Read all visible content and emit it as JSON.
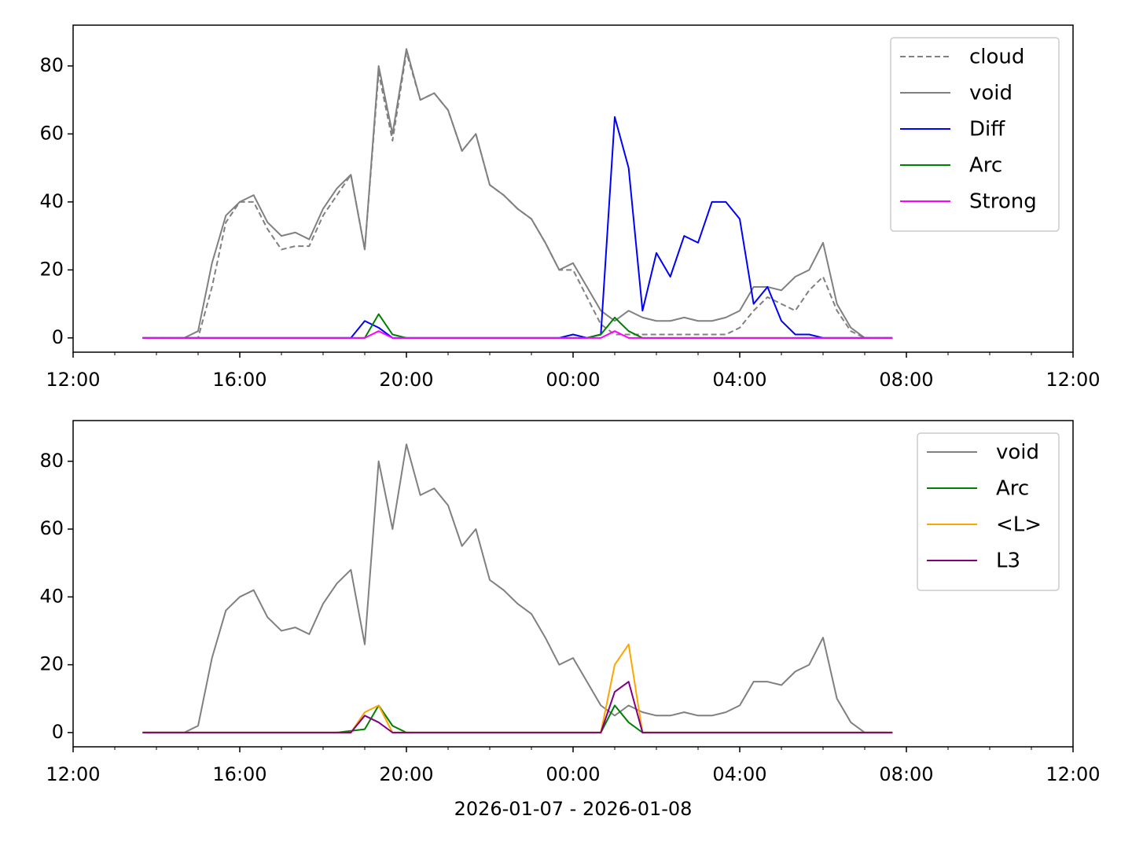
{
  "chart_data": [
    {
      "type": "line",
      "x": [
        "2026-01-07T13:40",
        "2026-01-07T14:00",
        "2026-01-07T14:20",
        "2026-01-07T14:40",
        "2026-01-07T15:00",
        "2026-01-07T15:20",
        "2026-01-07T15:40",
        "2026-01-07T16:00",
        "2026-01-07T16:20",
        "2026-01-07T16:40",
        "2026-01-07T17:00",
        "2026-01-07T17:20",
        "2026-01-07T17:40",
        "2026-01-07T18:00",
        "2026-01-07T18:20",
        "2026-01-07T18:40",
        "2026-01-07T19:00",
        "2026-01-07T19:20",
        "2026-01-07T19:40",
        "2026-01-07T20:00",
        "2026-01-07T20:20",
        "2026-01-07T20:40",
        "2026-01-07T21:00",
        "2026-01-07T21:20",
        "2026-01-07T21:40",
        "2026-01-07T22:00",
        "2026-01-07T22:20",
        "2026-01-07T22:40",
        "2026-01-07T23:00",
        "2026-01-07T23:20",
        "2026-01-07T23:40",
        "2026-01-08T00:00",
        "2026-01-08T00:20",
        "2026-01-08T00:40",
        "2026-01-08T01:00",
        "2026-01-08T01:20",
        "2026-01-08T01:40",
        "2026-01-08T02:00",
        "2026-01-08T02:20",
        "2026-01-08T02:40",
        "2026-01-08T03:00",
        "2026-01-08T03:20",
        "2026-01-08T03:40",
        "2026-01-08T04:00",
        "2026-01-08T04:20",
        "2026-01-08T04:40",
        "2026-01-08T05:00",
        "2026-01-08T05:20",
        "2026-01-08T05:40",
        "2026-01-08T06:00",
        "2026-01-08T06:20",
        "2026-01-08T06:40",
        "2026-01-08T07:00",
        "2026-01-08T07:20",
        "2026-01-08T07:40"
      ],
      "series": [
        {
          "name": "cloud",
          "color": "#808080",
          "linestyle": "dashed",
          "values": [
            0,
            0,
            0,
            0,
            0,
            15,
            34,
            40,
            40,
            32,
            26,
            27,
            27,
            36,
            42,
            48,
            26,
            78,
            58,
            84,
            70,
            72,
            67,
            55,
            60,
            45,
            42,
            38,
            35,
            28,
            20,
            20,
            12,
            4,
            1,
            1,
            1,
            1,
            1,
            1,
            1,
            1,
            1,
            3,
            8,
            12,
            10,
            8,
            14,
            18,
            8,
            2,
            0,
            0,
            0
          ]
        },
        {
          "name": "void",
          "color": "#808080",
          "values": [
            0,
            0,
            0,
            0,
            2,
            22,
            36,
            40,
            42,
            34,
            30,
            31,
            29,
            38,
            44,
            48,
            26,
            80,
            60,
            85,
            70,
            72,
            67,
            55,
            60,
            45,
            42,
            38,
            35,
            28,
            20,
            22,
            15,
            8,
            5,
            8,
            6,
            5,
            5,
            6,
            5,
            5,
            6,
            8,
            15,
            15,
            14,
            18,
            20,
            28,
            10,
            3,
            0,
            0,
            0
          ]
        },
        {
          "name": "Diff",
          "color": "#0000ff",
          "values": [
            0,
            0,
            0,
            0,
            0,
            0,
            0,
            0,
            0,
            0,
            0,
            0,
            0,
            0,
            0,
            0,
            5,
            3,
            0,
            0,
            0,
            0,
            0,
            0,
            0,
            0,
            0,
            0,
            0,
            0,
            0,
            1,
            0,
            1,
            65,
            50,
            8,
            25,
            18,
            30,
            28,
            40,
            40,
            35,
            10,
            15,
            5,
            1,
            1,
            0,
            0,
            0,
            0,
            0,
            0
          ]
        },
        {
          "name": "Arc",
          "color": "#008000",
          "values": [
            0,
            0,
            0,
            0,
            0,
            0,
            0,
            0,
            0,
            0,
            0,
            0,
            0,
            0,
            0,
            0,
            0,
            7,
            1,
            0,
            0,
            0,
            0,
            0,
            0,
            0,
            0,
            0,
            0,
            0,
            0,
            0,
            0,
            1,
            6,
            2,
            0,
            0,
            0,
            0,
            0,
            0,
            0,
            0,
            0,
            0,
            0,
            0,
            0,
            0,
            0,
            0,
            0,
            0,
            0
          ]
        },
        {
          "name": "Strong",
          "color": "#ff00ff",
          "values": [
            0,
            0,
            0,
            0,
            0,
            0,
            0,
            0,
            0,
            0,
            0,
            0,
            0,
            0,
            0,
            0,
            0,
            2,
            0,
            0,
            0,
            0,
            0,
            0,
            0,
            0,
            0,
            0,
            0,
            0,
            0,
            0,
            0,
            0,
            2,
            0,
            0,
            0,
            0,
            0,
            0,
            0,
            0,
            0,
            0,
            0,
            0,
            0,
            0,
            0,
            0,
            0,
            0,
            0,
            0
          ]
        }
      ],
      "xlim": [
        "2026-01-07T12:00",
        "2026-01-08T12:00"
      ],
      "xticks": [
        {
          "value": "2026-01-07T12:00",
          "label": "12:00"
        },
        {
          "value": "2026-01-07T16:00",
          "label": "16:00"
        },
        {
          "value": "2026-01-07T20:00",
          "label": "20:00"
        },
        {
          "value": "2026-01-08T00:00",
          "label": "00:00"
        },
        {
          "value": "2026-01-08T04:00",
          "label": "04:00"
        },
        {
          "value": "2026-01-08T08:00",
          "label": "08:00"
        },
        {
          "value": "2026-01-08T12:00",
          "label": "12:00"
        }
      ],
      "ylim": [
        -4.2,
        92
      ],
      "yticks": [
        0,
        20,
        40,
        60,
        80
      ],
      "legend": "upper right"
    },
    {
      "type": "line",
      "x": [
        "2026-01-07T13:40",
        "2026-01-07T14:00",
        "2026-01-07T14:20",
        "2026-01-07T14:40",
        "2026-01-07T15:00",
        "2026-01-07T15:20",
        "2026-01-07T15:40",
        "2026-01-07T16:00",
        "2026-01-07T16:20",
        "2026-01-07T16:40",
        "2026-01-07T17:00",
        "2026-01-07T17:20",
        "2026-01-07T17:40",
        "2026-01-07T18:00",
        "2026-01-07T18:20",
        "2026-01-07T18:40",
        "2026-01-07T19:00",
        "2026-01-07T19:20",
        "2026-01-07T19:40",
        "2026-01-07T20:00",
        "2026-01-07T20:20",
        "2026-01-07T20:40",
        "2026-01-07T21:00",
        "2026-01-07T21:20",
        "2026-01-07T21:40",
        "2026-01-07T22:00",
        "2026-01-07T22:20",
        "2026-01-07T22:40",
        "2026-01-07T23:00",
        "2026-01-07T23:20",
        "2026-01-07T23:40",
        "2026-01-08T00:00",
        "2026-01-08T00:20",
        "2026-01-08T00:40",
        "2026-01-08T01:00",
        "2026-01-08T01:20",
        "2026-01-08T01:40",
        "2026-01-08T02:00",
        "2026-01-08T02:20",
        "2026-01-08T02:40",
        "2026-01-08T03:00",
        "2026-01-08T03:20",
        "2026-01-08T03:40",
        "2026-01-08T04:00",
        "2026-01-08T04:20",
        "2026-01-08T04:40",
        "2026-01-08T05:00",
        "2026-01-08T05:20",
        "2026-01-08T05:40",
        "2026-01-08T06:00",
        "2026-01-08T06:20",
        "2026-01-08T06:40",
        "2026-01-08T07:00",
        "2026-01-08T07:20",
        "2026-01-08T07:40"
      ],
      "series": [
        {
          "name": "void",
          "color": "#808080",
          "values": [
            0,
            0,
            0,
            0,
            2,
            22,
            36,
            40,
            42,
            34,
            30,
            31,
            29,
            38,
            44,
            48,
            26,
            80,
            60,
            85,
            70,
            72,
            67,
            55,
            60,
            45,
            42,
            38,
            35,
            28,
            20,
            22,
            15,
            8,
            5,
            8,
            6,
            5,
            5,
            6,
            5,
            5,
            6,
            8,
            15,
            15,
            14,
            18,
            20,
            28,
            10,
            3,
            0,
            0,
            0
          ]
        },
        {
          "name": "Arc",
          "color": "#008000",
          "values": [
            0,
            0,
            0,
            0,
            0,
            0,
            0,
            0,
            0,
            0,
            0,
            0,
            0,
            0,
            0,
            0.5,
            1,
            8,
            2,
            0,
            0,
            0,
            0,
            0,
            0,
            0,
            0,
            0,
            0,
            0,
            0,
            0,
            0,
            0,
            8,
            3,
            0,
            0,
            0,
            0,
            0,
            0,
            0,
            0,
            0,
            0,
            0,
            0,
            0,
            0,
            0,
            0,
            0,
            0,
            0
          ]
        },
        {
          "name": "<L>",
          "color": "#ffa500",
          "values": [
            0,
            0,
            0,
            0,
            0,
            0,
            0,
            0,
            0,
            0,
            0,
            0,
            0,
            0,
            0,
            0,
            6,
            8,
            0,
            0,
            0,
            0,
            0,
            0,
            0,
            0,
            0,
            0,
            0,
            0,
            0,
            0,
            0,
            0,
            20,
            26,
            0,
            0,
            0,
            0,
            0,
            0,
            0,
            0,
            0,
            0,
            0,
            0,
            0,
            0,
            0,
            0,
            0,
            0,
            0
          ]
        },
        {
          "name": "L3",
          "color": "#800080",
          "values": [
            0,
            0,
            0,
            0,
            0,
            0,
            0,
            0,
            0,
            0,
            0,
            0,
            0,
            0,
            0,
            0,
            5,
            3,
            0,
            0,
            0,
            0,
            0,
            0,
            0,
            0,
            0,
            0,
            0,
            0,
            0,
            0,
            0,
            0,
            12,
            15,
            0,
            0,
            0,
            0,
            0,
            0,
            0,
            0,
            0,
            0,
            0,
            0,
            0,
            0,
            0,
            0,
            0,
            0,
            0
          ]
        }
      ],
      "xlim": [
        "2026-01-07T12:00",
        "2026-01-08T12:00"
      ],
      "xticks": [
        {
          "value": "2026-01-07T12:00",
          "label": "12:00"
        },
        {
          "value": "2026-01-07T16:00",
          "label": "16:00"
        },
        {
          "value": "2026-01-07T20:00",
          "label": "20:00"
        },
        {
          "value": "2026-01-08T00:00",
          "label": "00:00"
        },
        {
          "value": "2026-01-08T04:00",
          "label": "04:00"
        },
        {
          "value": "2026-01-08T08:00",
          "label": "08:00"
        },
        {
          "value": "2026-01-08T12:00",
          "label": "12:00"
        }
      ],
      "ylim": [
        -4.2,
        92
      ],
      "yticks": [
        0,
        20,
        40,
        60,
        80
      ],
      "legend": "upper right",
      "xlabel": "2026-01-07 - 2026-01-08"
    }
  ]
}
